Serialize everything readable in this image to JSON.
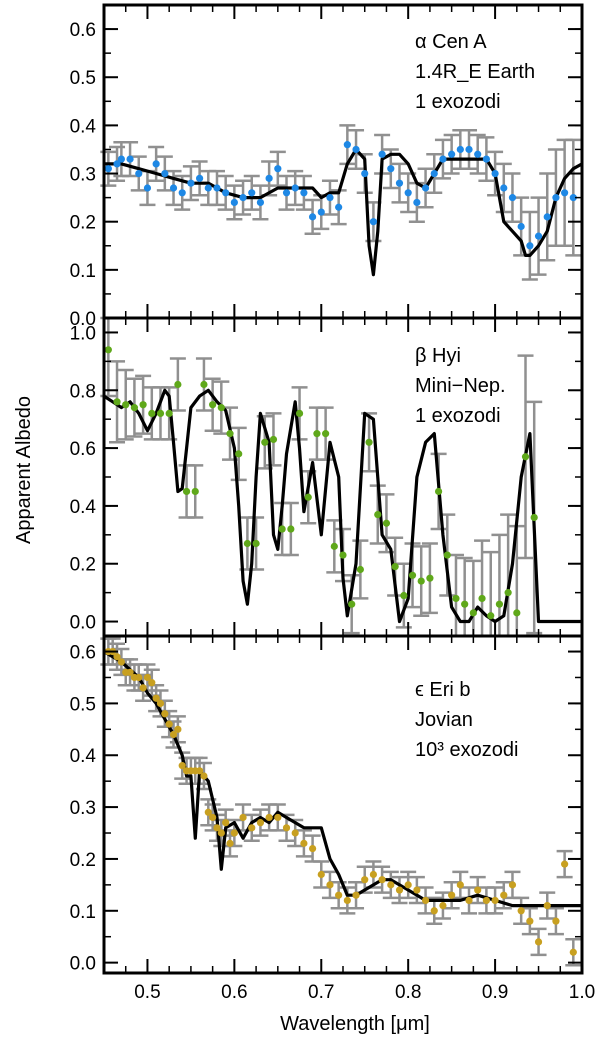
{
  "figure": {
    "xlabel": "Wavelength [μm]",
    "ylabel": "Apparent Albedo"
  },
  "chart_data": [
    {
      "type": "line",
      "panel": "top",
      "annotation_lines": [
        "α Cen A",
        "1.4R_E Earth",
        "1 exozodi"
      ],
      "xlim": [
        0.45,
        1.0
      ],
      "ylim": [
        0.0,
        0.65
      ],
      "yticks": [
        "0.0",
        "0.1",
        "0.2",
        "0.3",
        "0.4",
        "0.5",
        "0.6"
      ],
      "marker_color": "#1e88e5",
      "model": {
        "x": [
          0.45,
          0.47,
          0.49,
          0.51,
          0.53,
          0.55,
          0.57,
          0.59,
          0.61,
          0.63,
          0.65,
          0.67,
          0.69,
          0.7,
          0.71,
          0.72,
          0.73,
          0.74,
          0.75,
          0.755,
          0.76,
          0.765,
          0.77,
          0.78,
          0.79,
          0.8,
          0.81,
          0.82,
          0.83,
          0.84,
          0.86,
          0.88,
          0.89,
          0.9,
          0.91,
          0.92,
          0.93,
          0.935,
          0.94,
          0.95,
          0.96,
          0.97,
          0.98,
          0.99,
          1.0
        ],
        "y": [
          0.32,
          0.32,
          0.31,
          0.3,
          0.29,
          0.28,
          0.28,
          0.26,
          0.25,
          0.25,
          0.27,
          0.27,
          0.27,
          0.25,
          0.26,
          0.26,
          0.32,
          0.35,
          0.33,
          0.15,
          0.09,
          0.18,
          0.33,
          0.34,
          0.34,
          0.32,
          0.28,
          0.27,
          0.3,
          0.33,
          0.33,
          0.33,
          0.33,
          0.3,
          0.2,
          0.18,
          0.16,
          0.13,
          0.13,
          0.15,
          0.18,
          0.25,
          0.29,
          0.31,
          0.32
        ]
      },
      "points": {
        "x": [
          0.455,
          0.465,
          0.47,
          0.48,
          0.49,
          0.5,
          0.51,
          0.52,
          0.53,
          0.54,
          0.55,
          0.56,
          0.57,
          0.58,
          0.59,
          0.6,
          0.61,
          0.62,
          0.63,
          0.64,
          0.65,
          0.66,
          0.67,
          0.68,
          0.69,
          0.7,
          0.71,
          0.72,
          0.73,
          0.74,
          0.75,
          0.76,
          0.77,
          0.78,
          0.79,
          0.8,
          0.81,
          0.82,
          0.83,
          0.84,
          0.85,
          0.86,
          0.87,
          0.88,
          0.89,
          0.9,
          0.91,
          0.92,
          0.93,
          0.94,
          0.95,
          0.96,
          0.97,
          0.98,
          0.99
        ],
        "y": [
          0.31,
          0.32,
          0.33,
          0.33,
          0.3,
          0.27,
          0.32,
          0.3,
          0.27,
          0.26,
          0.28,
          0.29,
          0.27,
          0.27,
          0.26,
          0.24,
          0.25,
          0.26,
          0.24,
          0.29,
          0.31,
          0.26,
          0.27,
          0.26,
          0.21,
          0.22,
          0.25,
          0.23,
          0.36,
          0.35,
          0.3,
          0.2,
          0.34,
          0.31,
          0.28,
          0.26,
          0.24,
          0.27,
          0.3,
          0.33,
          0.34,
          0.35,
          0.35,
          0.34,
          0.33,
          0.3,
          0.27,
          0.25,
          0.19,
          0.15,
          0.17,
          0.21,
          0.25,
          0.26,
          0.25
        ],
        "err": [
          0.035,
          0.035,
          0.035,
          0.035,
          0.035,
          0.035,
          0.035,
          0.035,
          0.035,
          0.035,
          0.035,
          0.035,
          0.035,
          0.035,
          0.035,
          0.035,
          0.035,
          0.035,
          0.035,
          0.035,
          0.035,
          0.035,
          0.035,
          0.035,
          0.035,
          0.035,
          0.035,
          0.035,
          0.04,
          0.04,
          0.04,
          0.04,
          0.04,
          0.04,
          0.04,
          0.04,
          0.04,
          0.04,
          0.04,
          0.04,
          0.04,
          0.04,
          0.04,
          0.04,
          0.045,
          0.045,
          0.05,
          0.05,
          0.06,
          0.07,
          0.08,
          0.09,
          0.1,
          0.11,
          0.12
        ]
      }
    },
    {
      "type": "line",
      "panel": "middle",
      "annotation_lines": [
        "β Hyi",
        "Mini−Nep.",
        "1 exozodi"
      ],
      "xlim": [
        0.45,
        1.0
      ],
      "ylim": [
        -0.05,
        1.05
      ],
      "yticks": [
        "0.0",
        "0.2",
        "0.4",
        "0.6",
        "0.8",
        "1.0"
      ],
      "marker_color": "#5fa81a",
      "model": {
        "x": [
          0.45,
          0.46,
          0.47,
          0.48,
          0.49,
          0.5,
          0.51,
          0.52,
          0.525,
          0.53,
          0.535,
          0.54,
          0.545,
          0.55,
          0.56,
          0.57,
          0.58,
          0.59,
          0.6,
          0.605,
          0.61,
          0.615,
          0.62,
          0.625,
          0.63,
          0.64,
          0.645,
          0.65,
          0.655,
          0.66,
          0.67,
          0.675,
          0.68,
          0.69,
          0.7,
          0.71,
          0.72,
          0.725,
          0.73,
          0.74,
          0.75,
          0.76,
          0.77,
          0.78,
          0.79,
          0.8,
          0.81,
          0.82,
          0.83,
          0.84,
          0.85,
          0.86,
          0.87,
          0.88,
          0.89,
          0.9,
          0.91,
          0.92,
          0.93,
          0.94,
          0.95,
          0.96,
          0.97,
          1.0
        ],
        "y": [
          0.78,
          0.76,
          0.74,
          0.76,
          0.72,
          0.66,
          0.72,
          0.8,
          0.78,
          0.62,
          0.45,
          0.46,
          0.6,
          0.74,
          0.78,
          0.8,
          0.76,
          0.73,
          0.6,
          0.4,
          0.14,
          0.06,
          0.2,
          0.5,
          0.72,
          0.62,
          0.3,
          0.25,
          0.4,
          0.58,
          0.76,
          0.6,
          0.38,
          0.55,
          0.3,
          0.62,
          0.5,
          0.15,
          0.02,
          0.2,
          0.72,
          0.7,
          0.3,
          0.25,
          0.0,
          0.08,
          0.5,
          0.62,
          0.65,
          0.3,
          0.05,
          0.0,
          0.0,
          0.05,
          0.02,
          0.0,
          0.02,
          0.2,
          0.5,
          0.65,
          0.0,
          0.0,
          0.0,
          0.0
        ]
      },
      "points": {
        "x": [
          0.455,
          0.465,
          0.475,
          0.485,
          0.495,
          0.505,
          0.515,
          0.525,
          0.535,
          0.545,
          0.555,
          0.565,
          0.575,
          0.585,
          0.595,
          0.605,
          0.615,
          0.625,
          0.635,
          0.645,
          0.655,
          0.665,
          0.675,
          0.685,
          0.695,
          0.705,
          0.715,
          0.725,
          0.735,
          0.745,
          0.755,
          0.765,
          0.775,
          0.785,
          0.795,
          0.805,
          0.815,
          0.825,
          0.835,
          0.845,
          0.855,
          0.865,
          0.875,
          0.885,
          0.895,
          0.905,
          0.915,
          0.925,
          0.935,
          0.945
        ],
        "y": [
          0.94,
          0.76,
          0.75,
          0.74,
          0.75,
          0.72,
          0.72,
          0.72,
          0.82,
          0.45,
          0.45,
          0.82,
          0.75,
          0.74,
          0.65,
          0.58,
          0.27,
          0.27,
          0.62,
          0.63,
          0.32,
          0.32,
          0.72,
          0.43,
          0.65,
          0.65,
          0.26,
          0.23,
          0.06,
          0.18,
          0.62,
          0.37,
          0.34,
          0.19,
          0.09,
          0.16,
          0.14,
          0.15,
          0.45,
          0.23,
          0.08,
          0.06,
          0.03,
          0.08,
          0.02,
          0.06,
          0.1,
          0.03,
          0.57,
          0.36
        ],
        "err": [
          0.16,
          0.14,
          0.12,
          0.1,
          0.1,
          0.09,
          0.09,
          0.09,
          0.09,
          0.09,
          0.09,
          0.09,
          0.09,
          0.09,
          0.09,
          0.09,
          0.09,
          0.09,
          0.09,
          0.09,
          0.09,
          0.09,
          0.09,
          0.09,
          0.09,
          0.09,
          0.09,
          0.09,
          0.1,
          0.1,
          0.1,
          0.1,
          0.1,
          0.1,
          0.11,
          0.11,
          0.12,
          0.12,
          0.13,
          0.14,
          0.15,
          0.16,
          0.18,
          0.2,
          0.22,
          0.24,
          0.27,
          0.3,
          0.35,
          0.4
        ]
      }
    },
    {
      "type": "line",
      "panel": "bottom",
      "annotation_lines": [
        "ϵ Eri b",
        "Jovian",
        "10³ exozodi"
      ],
      "xlim": [
        0.45,
        1.0
      ],
      "ylim": [
        -0.02,
        0.63
      ],
      "yticks": [
        "0.0",
        "0.1",
        "0.2",
        "0.3",
        "0.4",
        "0.5",
        "0.6"
      ],
      "marker_color": "#c8a020",
      "model": {
        "x": [
          0.45,
          0.47,
          0.49,
          0.5,
          0.51,
          0.52,
          0.53,
          0.54,
          0.545,
          0.55,
          0.555,
          0.56,
          0.57,
          0.58,
          0.585,
          0.59,
          0.6,
          0.61,
          0.62,
          0.63,
          0.64,
          0.65,
          0.66,
          0.67,
          0.68,
          0.69,
          0.7,
          0.71,
          0.72,
          0.73,
          0.74,
          0.75,
          0.76,
          0.77,
          0.78,
          0.79,
          0.8,
          0.82,
          0.84,
          0.86,
          0.88,
          0.9,
          0.92,
          0.94,
          0.96,
          0.98,
          1.0
        ],
        "y": [
          0.6,
          0.58,
          0.55,
          0.52,
          0.5,
          0.47,
          0.44,
          0.4,
          0.36,
          0.36,
          0.24,
          0.37,
          0.35,
          0.28,
          0.18,
          0.26,
          0.27,
          0.24,
          0.27,
          0.28,
          0.27,
          0.29,
          0.28,
          0.27,
          0.26,
          0.26,
          0.26,
          0.2,
          0.17,
          0.13,
          0.13,
          0.14,
          0.15,
          0.16,
          0.16,
          0.15,
          0.14,
          0.12,
          0.12,
          0.12,
          0.13,
          0.12,
          0.11,
          0.11,
          0.11,
          0.11,
          0.11
        ]
      },
      "points": {
        "x": [
          0.455,
          0.46,
          0.465,
          0.47,
          0.475,
          0.48,
          0.485,
          0.49,
          0.495,
          0.5,
          0.505,
          0.51,
          0.515,
          0.52,
          0.525,
          0.53,
          0.535,
          0.54,
          0.545,
          0.55,
          0.555,
          0.56,
          0.565,
          0.57,
          0.575,
          0.58,
          0.585,
          0.59,
          0.595,
          0.6,
          0.61,
          0.62,
          0.63,
          0.64,
          0.65,
          0.66,
          0.67,
          0.68,
          0.69,
          0.7,
          0.71,
          0.72,
          0.73,
          0.74,
          0.75,
          0.76,
          0.77,
          0.78,
          0.79,
          0.8,
          0.81,
          0.82,
          0.83,
          0.84,
          0.85,
          0.86,
          0.87,
          0.88,
          0.89,
          0.9,
          0.91,
          0.92,
          0.93,
          0.94,
          0.95,
          0.96,
          0.97,
          0.98,
          0.99
        ],
        "y": [
          0.6,
          0.6,
          0.59,
          0.58,
          0.56,
          0.56,
          0.55,
          0.55,
          0.53,
          0.55,
          0.54,
          0.51,
          0.5,
          0.48,
          0.46,
          0.44,
          0.45,
          0.38,
          0.37,
          0.37,
          0.37,
          0.37,
          0.36,
          0.29,
          0.28,
          0.26,
          0.25,
          0.27,
          0.23,
          0.25,
          0.28,
          0.26,
          0.27,
          0.28,
          0.28,
          0.26,
          0.25,
          0.23,
          0.22,
          0.17,
          0.15,
          0.13,
          0.12,
          0.13,
          0.16,
          0.17,
          0.16,
          0.15,
          0.14,
          0.15,
          0.14,
          0.12,
          0.1,
          0.11,
          0.13,
          0.15,
          0.12,
          0.14,
          0.12,
          0.12,
          0.13,
          0.15,
          0.1,
          0.08,
          0.04,
          0.11,
          0.08,
          0.19,
          0.02
        ]
      }
    }
  ]
}
